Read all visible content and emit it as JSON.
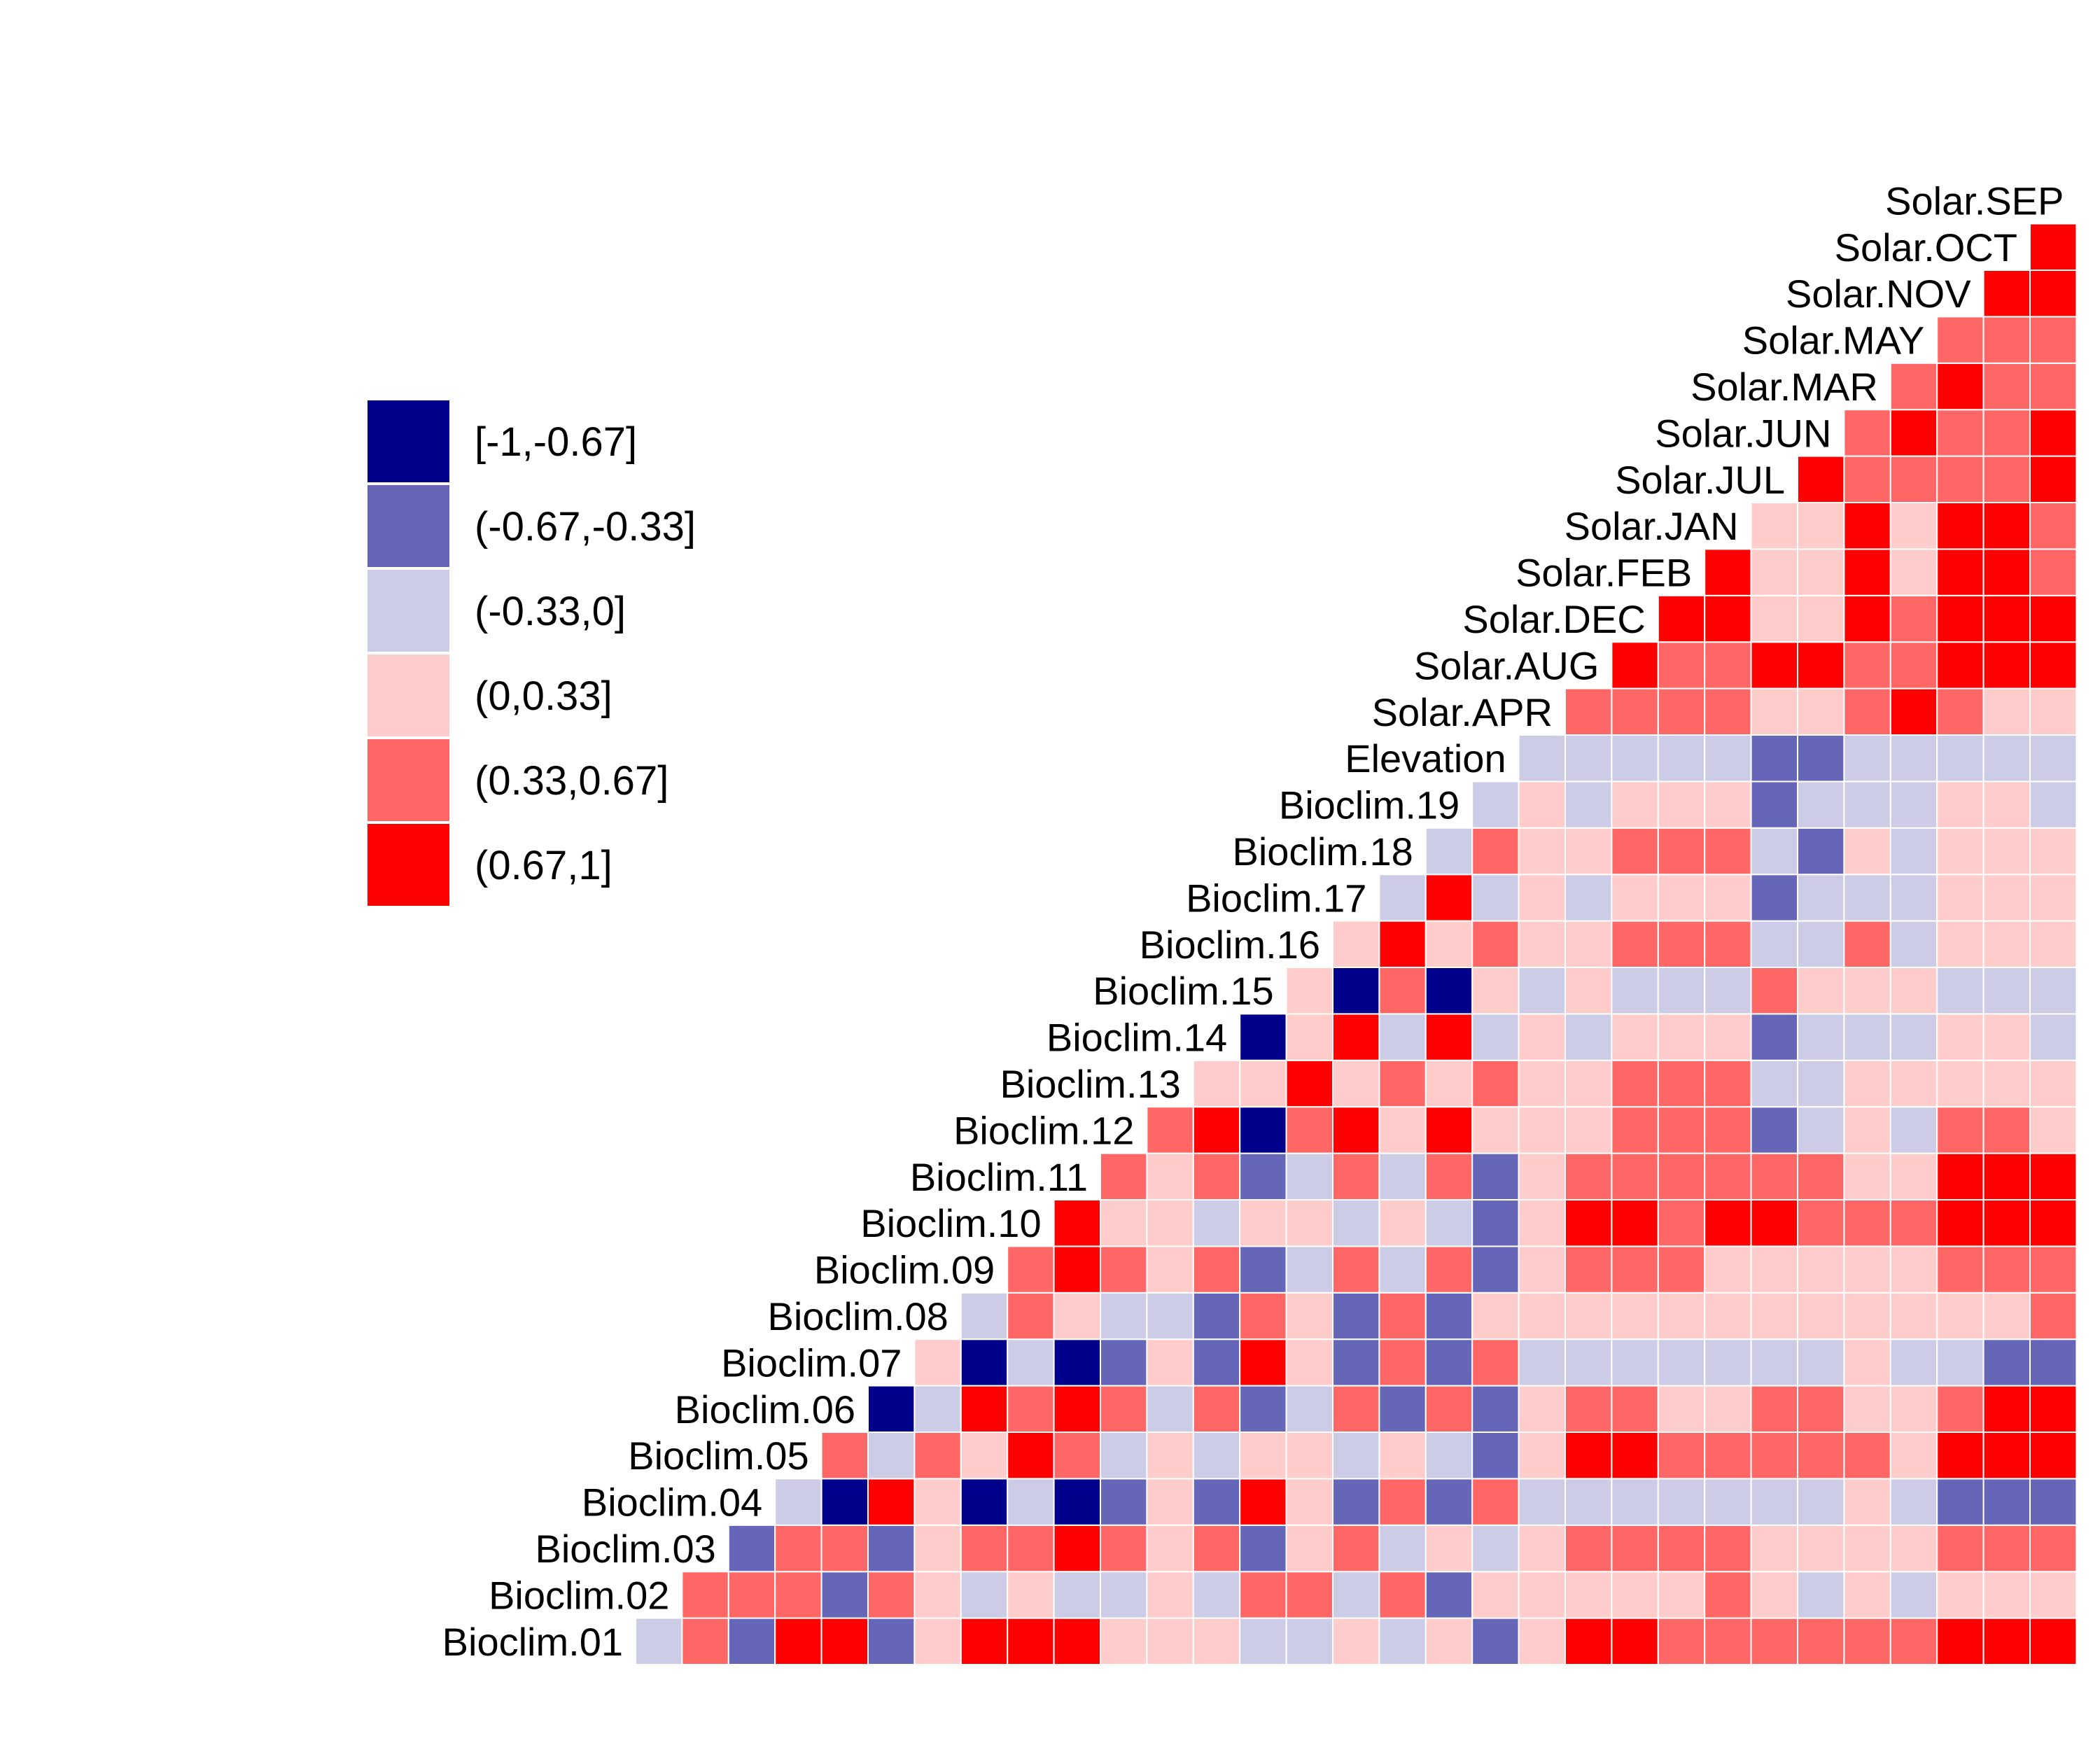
{
  "chart_data": {
    "type": "heatmap",
    "layout": "lower-triangle correlation matrix",
    "variables": [
      "Bioclim.01",
      "Bioclim.02",
      "Bioclim.03",
      "Bioclim.04",
      "Bioclim.05",
      "Bioclim.06",
      "Bioclim.07",
      "Bioclim.08",
      "Bioclim.09",
      "Bioclim.10",
      "Bioclim.11",
      "Bioclim.12",
      "Bioclim.13",
      "Bioclim.14",
      "Bioclim.15",
      "Bioclim.16",
      "Bioclim.17",
      "Bioclim.18",
      "Bioclim.19",
      "Elevation",
      "Solar.APR",
      "Solar.AUG",
      "Solar.DEC",
      "Solar.FEB",
      "Solar.JAN",
      "Solar.JUL",
      "Solar.JUN",
      "Solar.MAR",
      "Solar.MAY",
      "Solar.NOV",
      "Solar.OCT",
      "Solar.SEP"
    ],
    "legend": {
      "placement": "left",
      "bins": [
        {
          "label": "[-1,-0.67]",
          "color": "#00008B"
        },
        {
          "label": "(-0.67,-0.33]",
          "color": "#6666B9"
        },
        {
          "label": "(-0.33,0]",
          "color": "#CCCCE6"
        },
        {
          "label": "(0,0.33]",
          "color": "#FFCCCC"
        },
        {
          "label": "(0.33,0.67]",
          "color": "#FF6666"
        },
        {
          "label": "(0.67,1]",
          "color": "#FF0000"
        }
      ]
    },
    "matrix_bins_note_key": "each row i lists the bin index (into legend.bins) of its correlation with variables i+1 .. last",
    "rows": [
      [
        2,
        4,
        1,
        5,
        5,
        1,
        3,
        5,
        5,
        5,
        3,
        3,
        3,
        2,
        2,
        3,
        2,
        3,
        1,
        3,
        5,
        5,
        4,
        4,
        4,
        4,
        4,
        4,
        5,
        5,
        5
      ],
      [
        4,
        4,
        4,
        1,
        4,
        3,
        2,
        3,
        2,
        2,
        3,
        2,
        4,
        4,
        2,
        4,
        1,
        3,
        3,
        3,
        3,
        3,
        4,
        3,
        2,
        3,
        2,
        3,
        3,
        3
      ],
      [
        1,
        4,
        4,
        1,
        3,
        4,
        4,
        5,
        4,
        3,
        4,
        1,
        3,
        4,
        2,
        3,
        2,
        3,
        4,
        4,
        4,
        4,
        3,
        3,
        3,
        3,
        4,
        4,
        4
      ],
      [
        2,
        0,
        5,
        3,
        0,
        2,
        0,
        1,
        3,
        1,
        5,
        3,
        1,
        4,
        1,
        4,
        2,
        2,
        2,
        2,
        2,
        2,
        2,
        3,
        2,
        1,
        1,
        1
      ],
      [
        4,
        2,
        4,
        3,
        5,
        4,
        2,
        3,
        2,
        3,
        3,
        2,
        3,
        2,
        1,
        3,
        5,
        5,
        4,
        4,
        4,
        4,
        4,
        3,
        5,
        5,
        5
      ],
      [
        0,
        2,
        5,
        4,
        5,
        4,
        2,
        4,
        1,
        2,
        4,
        1,
        4,
        1,
        3,
        4,
        4,
        3,
        3,
        4,
        4,
        3,
        3,
        4,
        5,
        5
      ],
      [
        3,
        0,
        2,
        0,
        1,
        3,
        1,
        5,
        3,
        1,
        4,
        1,
        4,
        2,
        2,
        2,
        2,
        2,
        2,
        2,
        3,
        2,
        2,
        1,
        1
      ],
      [
        2,
        4,
        3,
        2,
        2,
        1,
        4,
        3,
        1,
        4,
        1,
        3,
        3,
        3,
        3,
        3,
        3,
        3,
        3,
        3,
        3,
        3,
        3,
        4
      ],
      [
        4,
        5,
        4,
        3,
        4,
        1,
        2,
        4,
        2,
        4,
        1,
        3,
        4,
        4,
        4,
        3,
        3,
        3,
        3,
        3,
        4,
        4,
        4
      ],
      [
        5,
        3,
        3,
        2,
        3,
        3,
        2,
        3,
        2,
        1,
        3,
        5,
        5,
        4,
        5,
        5,
        4,
        4,
        4,
        5,
        5,
        5
      ],
      [
        4,
        3,
        4,
        1,
        2,
        4,
        2,
        4,
        1,
        3,
        4,
        4,
        4,
        4,
        4,
        4,
        3,
        3,
        5,
        5,
        5
      ],
      [
        4,
        5,
        0,
        4,
        5,
        3,
        5,
        3,
        3,
        3,
        4,
        4,
        4,
        1,
        2,
        3,
        2,
        4,
        4,
        3
      ],
      [
        3,
        3,
        5,
        3,
        4,
        3,
        4,
        3,
        3,
        4,
        4,
        4,
        2,
        2,
        3,
        3,
        3,
        3,
        3
      ],
      [
        0,
        3,
        5,
        2,
        5,
        2,
        3,
        2,
        3,
        3,
        3,
        1,
        2,
        2,
        2,
        3,
        3,
        2
      ],
      [
        3,
        0,
        4,
        0,
        3,
        2,
        3,
        2,
        2,
        2,
        4,
        3,
        3,
        3,
        2,
        2,
        2
      ],
      [
        3,
        5,
        3,
        4,
        3,
        3,
        4,
        4,
        4,
        2,
        2,
        4,
        2,
        3,
        3,
        3
      ],
      [
        2,
        5,
        2,
        3,
        2,
        3,
        3,
        3,
        1,
        2,
        2,
        2,
        3,
        3,
        3
      ],
      [
        2,
        4,
        3,
        3,
        4,
        4,
        4,
        2,
        1,
        3,
        2,
        3,
        3,
        3
      ],
      [
        2,
        3,
        2,
        3,
        3,
        3,
        1,
        2,
        2,
        2,
        3,
        3,
        2
      ],
      [
        2,
        2,
        2,
        2,
        2,
        1,
        1,
        2,
        2,
        2,
        2,
        2
      ],
      [
        4,
        4,
        4,
        4,
        3,
        3,
        4,
        5,
        4,
        3,
        3
      ],
      [
        5,
        4,
        4,
        5,
        5,
        4,
        4,
        5,
        5,
        5
      ],
      [
        5,
        5,
        3,
        3,
        5,
        4,
        5,
        5,
        5
      ],
      [
        5,
        3,
        3,
        5,
        3,
        5,
        5,
        4
      ],
      [
        3,
        3,
        5,
        3,
        5,
        5,
        4
      ],
      [
        5,
        4,
        4,
        4,
        4,
        5
      ],
      [
        4,
        5,
        4,
        4,
        5
      ],
      [
        4,
        5,
        4,
        4
      ],
      [
        4,
        4,
        4
      ],
      [
        5,
        5
      ],
      [
        5
      ],
      []
    ],
    "grid": false
  }
}
